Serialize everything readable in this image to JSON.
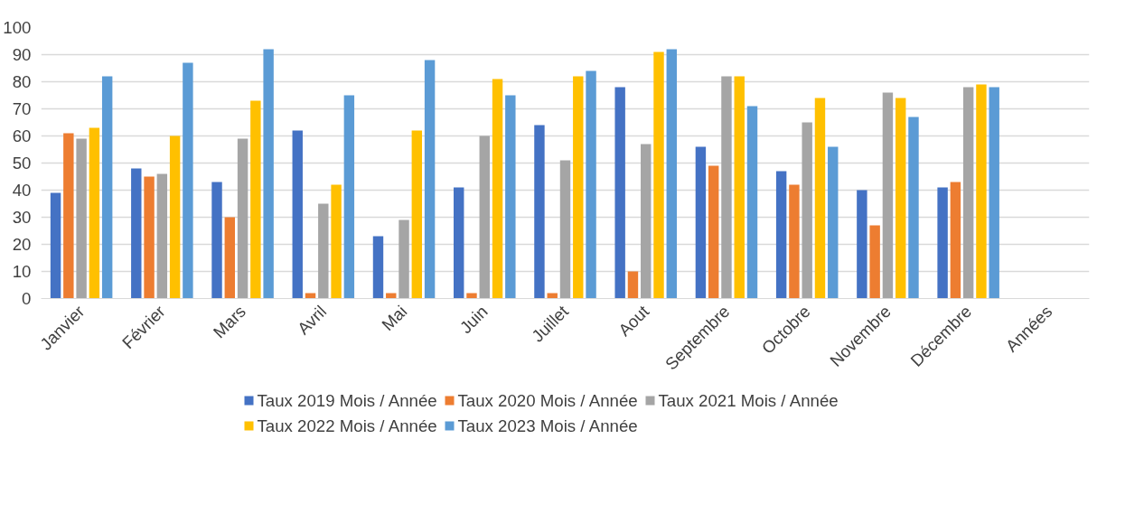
{
  "chart_data": {
    "type": "bar",
    "categories": [
      "Janvier",
      "Février",
      "Mars",
      "Avril",
      "Mai",
      "Juin",
      "Juillet",
      "Aout",
      "Septembre",
      "Octobre",
      "Novembre",
      "Décembre",
      "Années"
    ],
    "series": [
      {
        "name": "Taux 2019 Mois / Année",
        "color": "#4472c4",
        "values": [
          39,
          48,
          43,
          62,
          23,
          41,
          64,
          78,
          56,
          47,
          40,
          41,
          null
        ]
      },
      {
        "name": "Taux 2020 Mois / Année",
        "color": "#ed7d31",
        "values": [
          61,
          45,
          30,
          2,
          2,
          2,
          2,
          10,
          49,
          42,
          27,
          43,
          null
        ]
      },
      {
        "name": "Taux 2021 Mois / Année",
        "color": "#a5a5a5",
        "values": [
          59,
          46,
          59,
          35,
          29,
          60,
          51,
          57,
          82,
          65,
          76,
          78,
          null
        ]
      },
      {
        "name": "Taux 2022 Mois / Année",
        "color": "#ffc000",
        "values": [
          63,
          60,
          73,
          42,
          62,
          81,
          82,
          91,
          82,
          74,
          74,
          79,
          null
        ]
      },
      {
        "name": "Taux 2023 Mois / Année",
        "color": "#5b9bd5",
        "values": [
          82,
          87,
          92,
          75,
          88,
          75,
          84,
          92,
          71,
          56,
          67,
          78,
          null
        ]
      }
    ],
    "ylim": [
      0,
      100
    ],
    "yticks": [
      0,
      10,
      20,
      30,
      40,
      50,
      60,
      70,
      80,
      90,
      100
    ],
    "grid": "y",
    "legend": "bottom"
  }
}
